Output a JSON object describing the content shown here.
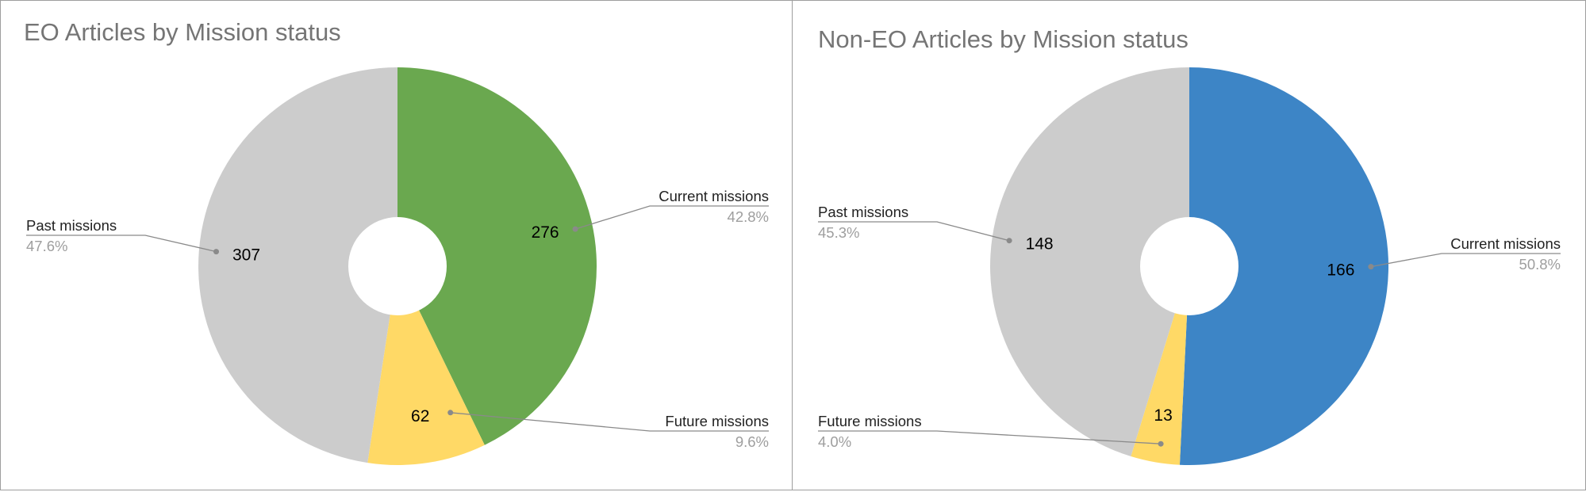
{
  "chart_data": [
    {
      "type": "pie",
      "title": "EO Articles by Mission status",
      "donut": true,
      "slices": [
        {
          "label": "Current missions",
          "value": 276,
          "percent": "42.8%",
          "color": "#6aa84f"
        },
        {
          "label": "Future missions",
          "value": 62,
          "percent": "9.6%",
          "color": "#ffd966"
        },
        {
          "label": "Past missions",
          "value": 307,
          "percent": "47.6%",
          "color": "#cccccc"
        }
      ]
    },
    {
      "type": "pie",
      "title": "Non-EO Articles by Mission status",
      "donut": true,
      "slices": [
        {
          "label": "Current missions",
          "value": 166,
          "percent": "50.8%",
          "color": "#3d85c6"
        },
        {
          "label": "Future missions",
          "value": 13,
          "percent": "4.0%",
          "color": "#ffd966"
        },
        {
          "label": "Past missions",
          "value": 148,
          "percent": "45.3%",
          "color": "#cccccc"
        }
      ]
    }
  ]
}
